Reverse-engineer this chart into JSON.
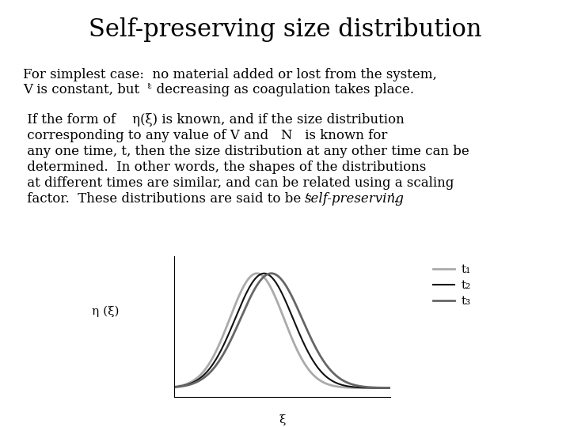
{
  "title": "Self-preserving size distribution",
  "title_fontsize": 22,
  "body_fontsize": 12,
  "background_color": "#ffffff",
  "line1a": "For simplest case:  no material added or lost from the system,",
  "line1b": "V is constant, but  ᵋ̇ decreasing as coagulation takes place.",
  "para2_lines": [
    " If the form of    η(ξ) is known, and if the size distribution",
    " corresponding to any value of V and   N   is known for",
    " any one time, t, then the size distribution at any other time can be",
    " determined.  In other words, the shapes of the distributions",
    " at different times are similar, and can be related using a scaling",
    " factor.  These distributions are said to be ‘"
  ],
  "italic_text": "self-preserving",
  "end_text": "’.",
  "ylabel_label": "η (ξ)",
  "xlabel_label": "ξ",
  "curve_colors": [
    "#aaaaaa",
    "#111111",
    "#666666"
  ],
  "legend_labels": [
    "t₁",
    "t₂",
    "t₃"
  ],
  "legend_colors": [
    "#aaaaaa",
    "#111111",
    "#666666"
  ]
}
